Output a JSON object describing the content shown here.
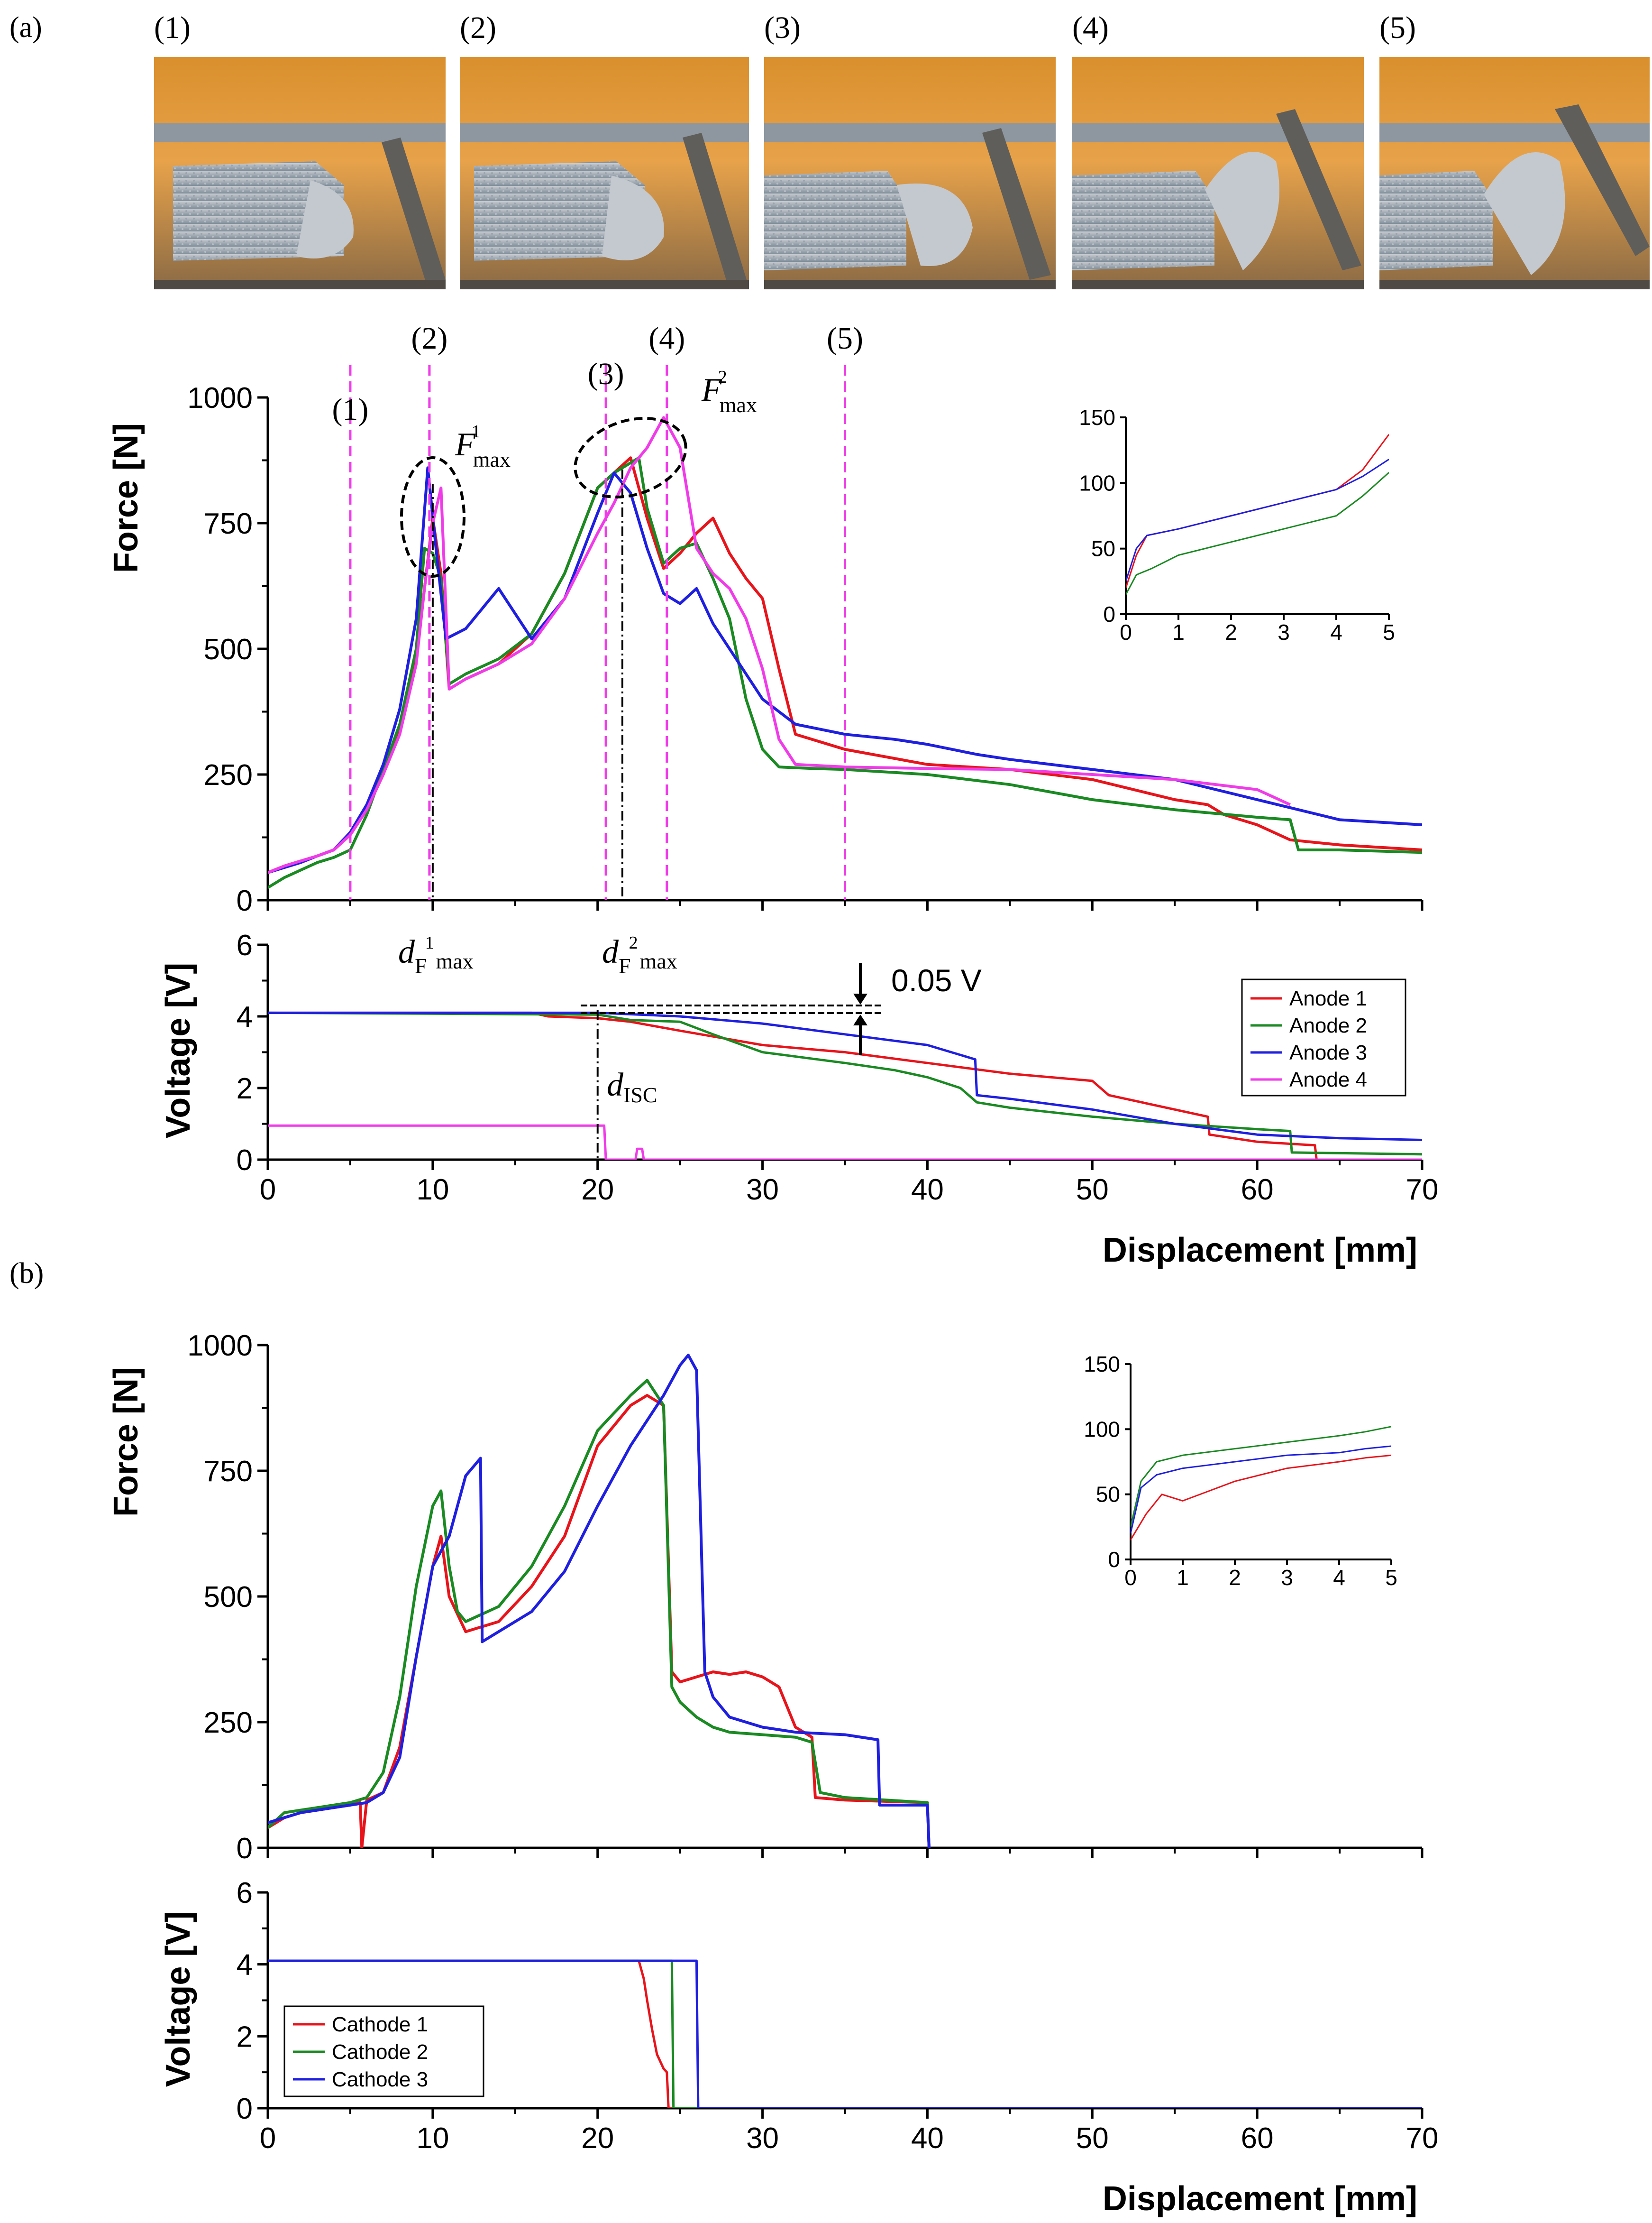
{
  "panels": {
    "a": "(a)",
    "b": "(b)"
  },
  "photos": [
    {
      "label": "(1)"
    },
    {
      "label": "(2)"
    },
    {
      "label": "(3)"
    },
    {
      "label": "(4)"
    },
    {
      "label": "(5)"
    }
  ],
  "colors": {
    "red": "#e8141b",
    "green": "#1a8a22",
    "blue": "#1f1fe0",
    "magenta": "#f03ce8"
  },
  "stage_markers": {
    "labels": [
      "(1)",
      "(2)",
      "(3)",
      "(4)",
      "(5)"
    ],
    "x": [
      5,
      9.8,
      20.5,
      24.2,
      35
    ]
  },
  "annotations": {
    "fmax": "F",
    "fmax_sub": "max",
    "sup1": "1",
    "sup2": "2",
    "d": "d",
    "d_sub_F": "F",
    "d_sub_max": "max",
    "d_isc_sub": "ISC",
    "volt_drop": "0.05 V"
  },
  "chart_data": [
    {
      "id": "a_force",
      "type": "line",
      "title": "",
      "xlabel": "",
      "ylabel": "Force [N]",
      "xlim": [
        0,
        70
      ],
      "ylim": [
        0,
        1000
      ],
      "yticks": [
        "0",
        "250",
        "500",
        "750",
        "1000"
      ],
      "series": [
        {
          "name": "Anode 1",
          "color": "#e8141b",
          "x": [
            0,
            1,
            2,
            3,
            4,
            5,
            6,
            7,
            8,
            9,
            9.5,
            10,
            10.5,
            11,
            12,
            14,
            16,
            18,
            20,
            21,
            22,
            23,
            24,
            25,
            26,
            27,
            28,
            29,
            30,
            31,
            32,
            35,
            40,
            45,
            50,
            55,
            57,
            58,
            60,
            62,
            65,
            70
          ],
          "y": [
            55,
            68,
            78,
            88,
            100,
            130,
            180,
            250,
            340,
            480,
            620,
            760,
            650,
            420,
            440,
            470,
            530,
            650,
            820,
            850,
            880,
            760,
            660,
            690,
            730,
            760,
            690,
            640,
            600,
            460,
            330,
            300,
            270,
            260,
            240,
            200,
            190,
            170,
            150,
            120,
            110,
            100
          ]
        },
        {
          "name": "Anode 2",
          "color": "#1a8a22",
          "x": [
            0,
            1,
            2,
            3,
            4,
            5,
            6,
            7,
            8,
            9,
            9.5,
            10,
            10.5,
            11,
            12,
            14,
            16,
            18,
            20,
            21,
            22,
            22.5,
            23,
            24,
            25,
            26,
            27,
            28,
            29,
            30,
            31,
            33,
            35,
            40,
            45,
            50,
            55,
            60,
            62,
            62.5,
            65,
            70
          ],
          "y": [
            25,
            45,
            60,
            75,
            85,
            100,
            170,
            260,
            350,
            500,
            700,
            690,
            640,
            430,
            450,
            480,
            530,
            650,
            820,
            850,
            870,
            880,
            780,
            670,
            700,
            710,
            640,
            560,
            400,
            300,
            265,
            262,
            260,
            250,
            230,
            200,
            180,
            165,
            160,
            100,
            100,
            95
          ]
        },
        {
          "name": "Anode 3",
          "color": "#1f1fe0",
          "x": [
            0,
            1,
            2,
            3,
            4,
            5,
            6,
            7,
            8,
            9,
            9.7,
            10.2,
            10.8,
            12,
            14,
            16,
            18,
            20,
            21,
            22,
            23,
            24,
            25,
            26,
            27,
            28,
            30,
            32,
            35,
            38,
            40,
            43,
            45,
            50,
            55,
            60,
            65,
            70
          ],
          "y": [
            55,
            65,
            75,
            88,
            100,
            135,
            190,
            270,
            380,
            560,
            860,
            700,
            520,
            540,
            620,
            520,
            600,
            770,
            850,
            810,
            700,
            610,
            590,
            620,
            550,
            500,
            400,
            350,
            330,
            320,
            310,
            290,
            280,
            260,
            240,
            200,
            160,
            150
          ]
        },
        {
          "name": "Anode 4",
          "color": "#f03ce8",
          "x": [
            0,
            1,
            2,
            3,
            4,
            5,
            6,
            7,
            8,
            9,
            9.5,
            10,
            10.5,
            11,
            12,
            14,
            16,
            18,
            20,
            21,
            22,
            23,
            24,
            25,
            26,
            27,
            28,
            29,
            30,
            31,
            32,
            35,
            40,
            45,
            50,
            55,
            60,
            62
          ],
          "y": [
            55,
            68,
            78,
            88,
            100,
            130,
            180,
            250,
            330,
            470,
            620,
            750,
            820,
            420,
            440,
            470,
            510,
            600,
            730,
            790,
            860,
            900,
            960,
            900,
            700,
            650,
            620,
            560,
            460,
            320,
            270,
            265,
            262,
            260,
            250,
            240,
            220,
            190
          ]
        }
      ],
      "inset": {
        "xlim": [
          0,
          5
        ],
        "ylim": [
          0,
          150
        ],
        "xticks": [
          "0",
          "1",
          "2",
          "3",
          "4",
          "5"
        ],
        "yticks": [
          "0",
          "50",
          "100",
          "150"
        ],
        "series": [
          {
            "color": "#e8141b",
            "x": [
              0,
              0.2,
              0.4,
              1,
              2,
              3,
              4,
              4.5,
              5
            ],
            "y": [
              20,
              45,
              60,
              65,
              75,
              85,
              95,
              110,
              137
            ]
          },
          {
            "color": "#1a8a22",
            "x": [
              0,
              0.2,
              0.5,
              1,
              2,
              3,
              4,
              4.5,
              5
            ],
            "y": [
              15,
              30,
              35,
              45,
              55,
              65,
              75,
              90,
              108
            ]
          },
          {
            "color": "#1f1fe0",
            "x": [
              0,
              0.2,
              0.4,
              1,
              2,
              3,
              4,
              4.5,
              5
            ],
            "y": [
              25,
              50,
              60,
              65,
              75,
              85,
              95,
              105,
              118
            ]
          }
        ]
      }
    },
    {
      "id": "a_voltage",
      "type": "line",
      "xlabel": "Displacement [mm]",
      "ylabel": "Voltage [V]",
      "xlim": [
        0,
        70
      ],
      "ylim": [
        0,
        6
      ],
      "xticks": [
        "0",
        "10",
        "20",
        "30",
        "40",
        "50",
        "60",
        "70"
      ],
      "yticks": [
        "0",
        "2",
        "4",
        "6"
      ],
      "legend": "top-right",
      "series": [
        {
          "name": "Anode 1",
          "color": "#e8141b",
          "x": [
            0,
            16,
            17,
            20,
            22,
            25,
            30,
            35,
            40,
            45,
            50,
            51,
            55,
            57,
            57.1,
            60,
            63.5,
            63.6,
            70
          ],
          "y": [
            4.1,
            4.1,
            4.0,
            3.95,
            3.85,
            3.6,
            3.2,
            3.0,
            2.7,
            2.4,
            2.2,
            1.8,
            1.4,
            1.2,
            0.7,
            0.5,
            0.4,
            0,
            0
          ]
        },
        {
          "name": "Anode 2",
          "color": "#1a8a22",
          "x": [
            0,
            20,
            22,
            25,
            27,
            30,
            35,
            38,
            40,
            42,
            43,
            45,
            50,
            55,
            60,
            62,
            62.1,
            70
          ],
          "y": [
            4.1,
            4.05,
            3.9,
            3.85,
            3.5,
            3.0,
            2.7,
            2.5,
            2.3,
            2.0,
            1.6,
            1.45,
            1.2,
            1.0,
            0.85,
            0.8,
            0.2,
            0.15
          ]
        },
        {
          "name": "Anode 3",
          "color": "#1f1fe0",
          "x": [
            0,
            20,
            25,
            30,
            35,
            40,
            42.9,
            43,
            45,
            50,
            55,
            60,
            65,
            70
          ],
          "y": [
            4.1,
            4.1,
            4.0,
            3.8,
            3.5,
            3.2,
            2.8,
            1.8,
            1.7,
            1.4,
            1.0,
            0.7,
            0.6,
            0.55
          ]
        },
        {
          "name": "Anode 4",
          "color": "#f03ce8",
          "x": [
            0,
            20.4,
            20.5,
            22.3,
            22.4,
            22.7,
            22.8,
            70
          ],
          "y": [
            0.95,
            0.95,
            0,
            0,
            0.3,
            0.3,
            0,
            0
          ]
        }
      ]
    },
    {
      "id": "b_force",
      "type": "line",
      "xlabel": "",
      "ylabel": "Force [N]",
      "xlim": [
        0,
        70
      ],
      "ylim": [
        0,
        1000
      ],
      "yticks": [
        "0",
        "250",
        "500",
        "750",
        "1000"
      ],
      "series": [
        {
          "name": "Cathode 1",
          "color": "#e8141b",
          "x": [
            0,
            1,
            2,
            3,
            4,
            5,
            5.6,
            5.7,
            6,
            7,
            8,
            9,
            10,
            10.5,
            11,
            12,
            14,
            16,
            18,
            20,
            22,
            23,
            24,
            24.5,
            25,
            26,
            27,
            28,
            29,
            30,
            31,
            32,
            33,
            33.2,
            35,
            40,
            40.1
          ],
          "y": [
            40,
            60,
            70,
            75,
            80,
            85,
            90,
            0,
            95,
            110,
            200,
            380,
            560,
            620,
            500,
            430,
            450,
            520,
            620,
            800,
            880,
            900,
            880,
            350,
            330,
            340,
            350,
            345,
            350,
            340,
            320,
            240,
            220,
            100,
            95,
            90,
            0
          ]
        },
        {
          "name": "Cathode 2",
          "color": "#1a8a22",
          "x": [
            0,
            1,
            2,
            3,
            4,
            5,
            6,
            7,
            8,
            9,
            10,
            10.5,
            11,
            11.5,
            12,
            14,
            16,
            18,
            20,
            22,
            23,
            24,
            24.5,
            25,
            26,
            27,
            28,
            30,
            32,
            33,
            33.5,
            35,
            40,
            40.1
          ],
          "y": [
            40,
            70,
            75,
            80,
            85,
            90,
            100,
            150,
            300,
            520,
            680,
            710,
            560,
            470,
            450,
            480,
            560,
            680,
            830,
            900,
            930,
            880,
            320,
            290,
            260,
            240,
            230,
            225,
            220,
            210,
            110,
            100,
            90,
            0
          ]
        },
        {
          "name": "Cathode 3",
          "color": "#1f1fe0",
          "x": [
            0,
            1,
            2,
            3,
            4,
            5,
            6,
            7,
            8,
            9,
            10,
            11,
            12,
            12.9,
            13,
            14,
            16,
            18,
            20,
            22,
            24,
            25,
            25.5,
            26,
            26.5,
            27,
            28,
            30,
            32,
            35,
            37,
            37.1,
            40,
            40.1
          ],
          "y": [
            50,
            60,
            70,
            75,
            80,
            85,
            90,
            110,
            180,
            380,
            560,
            620,
            740,
            775,
            410,
            430,
            470,
            550,
            680,
            800,
            900,
            960,
            980,
            950,
            350,
            300,
            260,
            240,
            230,
            225,
            215,
            85,
            85,
            0
          ]
        }
      ],
      "inset": {
        "xlim": [
          0,
          5
        ],
        "ylim": [
          0,
          150
        ],
        "xticks": [
          "0",
          "1",
          "2",
          "3",
          "4",
          "5"
        ],
        "yticks": [
          "0",
          "50",
          "100",
          "150"
        ],
        "series": [
          {
            "color": "#e8141b",
            "x": [
              0,
              0.3,
              0.6,
              1,
              2,
              3,
              4,
              4.5,
              5
            ],
            "y": [
              15,
              35,
              50,
              45,
              60,
              70,
              75,
              78,
              80
            ]
          },
          {
            "color": "#1a8a22",
            "x": [
              0,
              0.2,
              0.5,
              1,
              2,
              3,
              4,
              4.5,
              5
            ],
            "y": [
              25,
              60,
              75,
              80,
              85,
              90,
              95,
              98,
              102
            ]
          },
          {
            "color": "#1f1fe0",
            "x": [
              0,
              0.2,
              0.5,
              1,
              2,
              3,
              4,
              4.5,
              5
            ],
            "y": [
              20,
              55,
              65,
              70,
              75,
              80,
              82,
              85,
              87
            ]
          }
        ]
      }
    },
    {
      "id": "b_voltage",
      "type": "line",
      "xlabel": "Displacement [mm]",
      "ylabel": "Voltage [V]",
      "xlim": [
        0,
        70
      ],
      "ylim": [
        0,
        6
      ],
      "xticks": [
        "0",
        "10",
        "20",
        "30",
        "40",
        "50",
        "60",
        "70"
      ],
      "yticks": [
        "0",
        "2",
        "4",
        "6"
      ],
      "legend": "bottom-left",
      "series": [
        {
          "name": "Cathode 1",
          "color": "#e8141b",
          "x": [
            0,
            22.5,
            22.8,
            23,
            23.3,
            23.6,
            24,
            24.2,
            24.3,
            70
          ],
          "y": [
            4.1,
            4.1,
            3.6,
            3.0,
            2.2,
            1.5,
            1.1,
            1.0,
            0,
            0
          ]
        },
        {
          "name": "Cathode 2",
          "color": "#1a8a22",
          "x": [
            0,
            24.5,
            24.6,
            70
          ],
          "y": [
            4.1,
            4.1,
            0,
            0
          ]
        },
        {
          "name": "Cathode 3",
          "color": "#1f1fe0",
          "x": [
            0,
            26,
            26.1,
            70
          ],
          "y": [
            4.1,
            4.1,
            0,
            0
          ]
        }
      ]
    }
  ]
}
